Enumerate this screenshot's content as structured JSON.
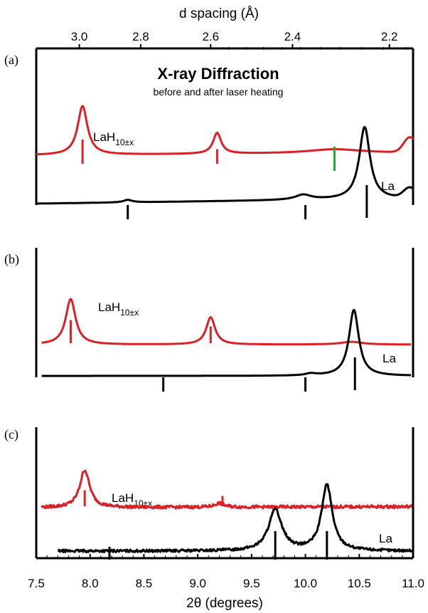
{
  "chart_data": {
    "type": "line",
    "title": "X-ray Diffraction",
    "subtitle": "before and after laser heating",
    "xlabel": "2θ (degrees)",
    "xlim": [
      7.5,
      11.0
    ],
    "x_ticks": [
      "7.5",
      "8.0",
      "8.5",
      "9.0",
      "9.5",
      "10.0",
      "10.5",
      "11.0"
    ],
    "top_axis": {
      "label": "d spacing (Å)",
      "ticks": [
        "3.0",
        "2.8",
        "2.6",
        "2.4",
        "2.2"
      ],
      "tick_2theta": [
        7.9,
        8.47,
        9.12,
        9.88,
        10.78
      ]
    },
    "panels": [
      {
        "label": "(a)",
        "annotations": {
          "phase_main": "LaH",
          "phase_sub": "10±x",
          "element": "La"
        },
        "series": [
          {
            "color": "#dd1f26",
            "peaks": [
              {
                "x": 7.93,
                "h": 0.98,
                "w": 0.055
              },
              {
                "x": 9.18,
                "h": 0.42,
                "w": 0.045
              },
              {
                "x": 10.27,
                "h": 0.08,
                "w": 0.3
              }
            ],
            "background": {
              "x0": 7.5,
              "x1": 11.0,
              "y0": 0.2,
              "y1": 0.25,
              "bump_x": 10.97,
              "bump_h": 0.3
            },
            "ticks": [
              7.93,
              9.18,
              10.27
            ],
            "tick_colors": [
              "#dd1f26",
              "#dd1f26",
              "#22aa22"
            ]
          },
          {
            "color": "#000000",
            "peaks": [
              {
                "x": 10.55,
                "h": 1.45,
                "w": 0.06
              },
              {
                "x": 8.35,
                "h": 0.05,
                "w": 0.05
              },
              {
                "x": 9.98,
                "h": 0.1,
                "w": 0.09
              }
            ],
            "background": {
              "x0": 7.5,
              "x1": 11.0,
              "y0": 0.0,
              "y1": 0.1,
              "bump_x": 10.97,
              "bump_h": 0.2
            },
            "ticks": [
              8.35,
              10.0,
              10.57
            ]
          }
        ]
      },
      {
        "label": "(b)",
        "annotations": {
          "phase_main": "LaH",
          "phase_sub": "10±x",
          "element": "La"
        },
        "series": [
          {
            "color": "#dd1f26",
            "peaks": [
              {
                "x": 7.82,
                "h": 1.0,
                "w": 0.055
              },
              {
                "x": 9.12,
                "h": 0.6,
                "w": 0.05
              },
              {
                "x": 10.43,
                "h": 0.06,
                "w": 0.12
              }
            ],
            "background": {
              "x0": 7.55,
              "x1": 10.98,
              "y0": 0.0,
              "y1": 0.0
            },
            "ticks": [
              7.82,
              9.12
            ]
          },
          {
            "color": "#000000",
            "peaks": [
              {
                "x": 10.45,
                "h": 1.45,
                "w": 0.055
              },
              {
                "x": 10.05,
                "h": 0.04,
                "w": 0.06
              }
            ],
            "background": {
              "x0": 7.55,
              "x1": 10.98,
              "y0": 0.0,
              "y1": 0.0
            },
            "ticks": [
              8.68,
              10.0,
              10.46
            ]
          }
        ]
      },
      {
        "label": "(c)",
        "annotations": {
          "phase_main": "LaH",
          "phase_sub": "10±x",
          "element": "La"
        },
        "series": [
          {
            "color": "#dd1f26",
            "peaks": [
              {
                "x": 7.95,
                "h": 0.75,
                "w": 0.055
              },
              {
                "x": 9.2,
                "h": 0.08,
                "w": 0.05
              }
            ],
            "background": {
              "x0": 7.55,
              "x1": 11.0,
              "y0": 0.0,
              "y1": 0.02
            },
            "noise": 0.03,
            "ticks": [
              7.95,
              9.23
            ]
          },
          {
            "color": "#000000",
            "peaks": [
              {
                "x": 9.72,
                "h": 0.82,
                "w": 0.075
              },
              {
                "x": 10.2,
                "h": 1.32,
                "w": 0.06
              }
            ],
            "background": {
              "x0": 7.7,
              "x1": 11.0,
              "y0": 0.0,
              "y1": 0.0
            },
            "noise": 0.025,
            "ticks": [
              8.18,
              9.72,
              10.2
            ]
          }
        ]
      }
    ]
  }
}
